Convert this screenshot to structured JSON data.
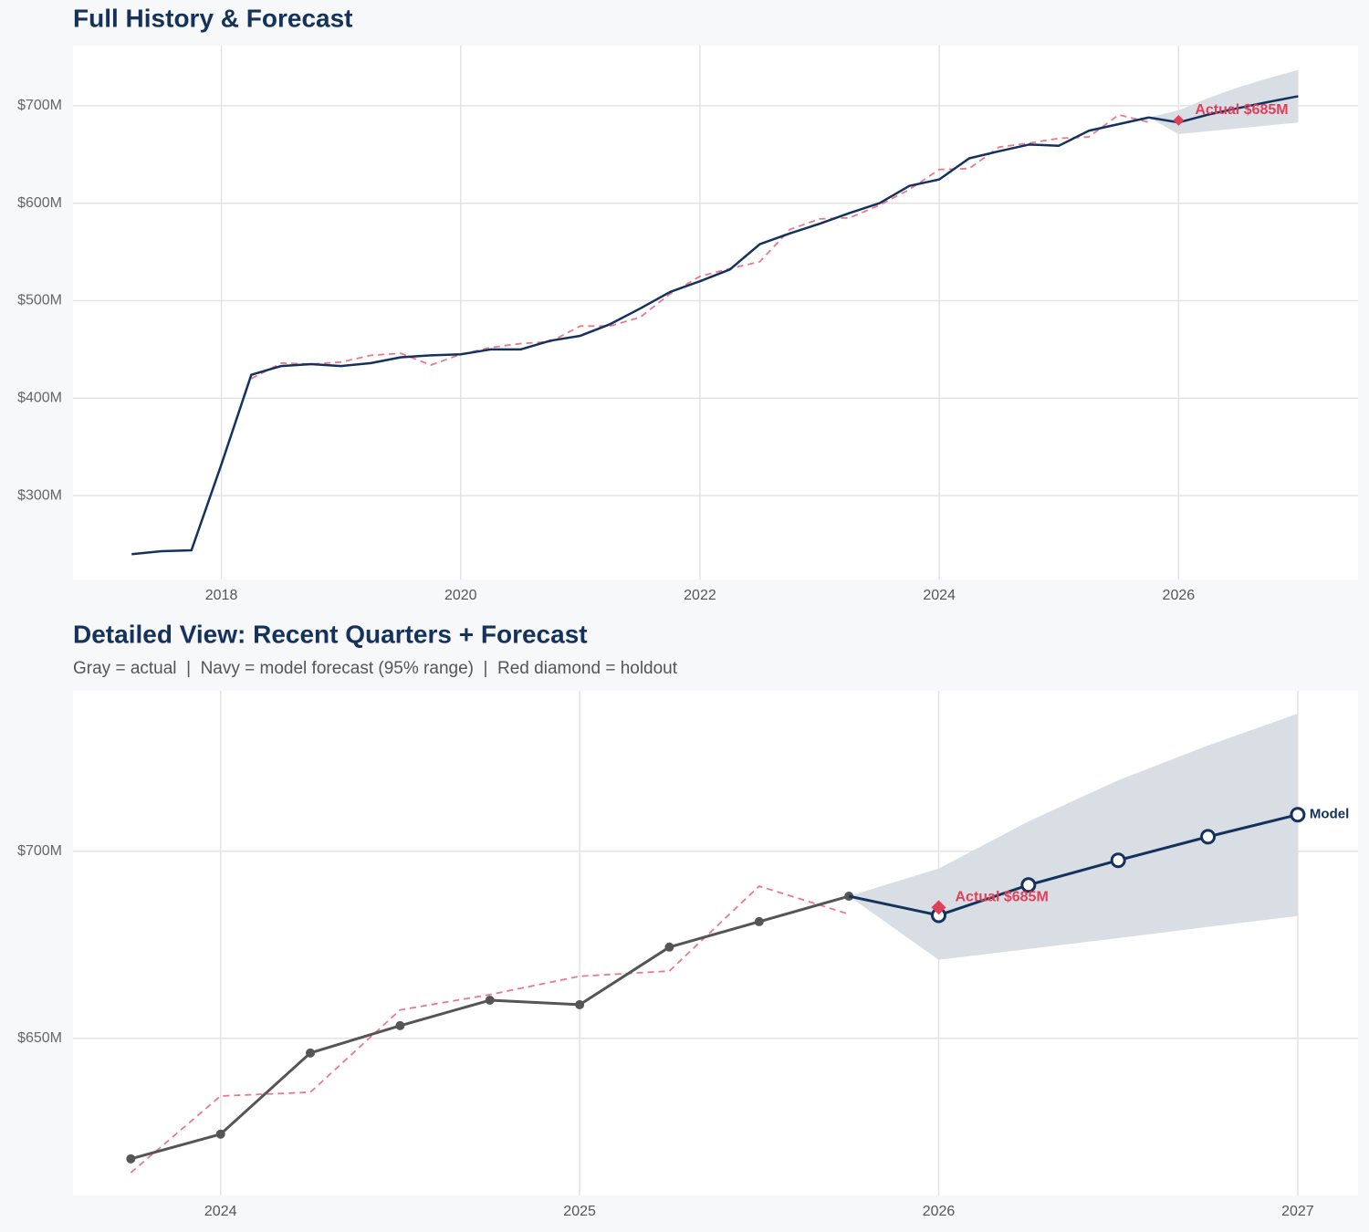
{
  "chart_data": [
    {
      "type": "line",
      "title": "Full History & Forecast",
      "xlim": [
        2016.76,
        2027.5
      ],
      "ylim": [
        214,
        761.7
      ],
      "xticks": [
        2018,
        2020,
        2022,
        2024,
        2026
      ],
      "yticks": [
        {
          "value": 300,
          "label": "$300M"
        },
        {
          "value": 400,
          "label": "$400M"
        },
        {
          "value": 500,
          "label": "$500M"
        },
        {
          "value": 600,
          "label": "$600M"
        },
        {
          "value": 700,
          "label": "$700M"
        }
      ],
      "grid": true,
      "band": {
        "color": "#d9dee5",
        "x": [
          2025.75,
          2026,
          2026.25,
          2026.5,
          2026.75,
          2027
        ],
        "upper": [
          688,
          695.4,
          708,
          719,
          728.3,
          736.8
        ],
        "lower": [
          688,
          671,
          673.9,
          676.8,
          679.8,
          682.7
        ]
      },
      "series": [
        {
          "color": "#e8798e",
          "dashed": true,
          "x": [
            2018.25,
            2018.5,
            2018.75,
            2019,
            2019.25,
            2019.5,
            2019.75,
            2020,
            2020.25,
            2020.5,
            2020.75,
            2021,
            2021.25,
            2021.5,
            2021.75,
            2022,
            2022.25,
            2022.5,
            2022.75,
            2023,
            2023.25,
            2023.5,
            2023.75,
            2024,
            2024.25,
            2024.5,
            2024.75,
            2025,
            2025.25,
            2025.5,
            2025.75
          ],
          "values": [
            420,
            436,
            435,
            437,
            444,
            446,
            434,
            445,
            452,
            456,
            458,
            474,
            474,
            483,
            507,
            525,
            533,
            540,
            573,
            584,
            585,
            598,
            614.1,
            634.6,
            635.6,
            657.6,
            661.7,
            666.6,
            668,
            690.7,
            683.2
          ]
        },
        {
          "color": "#14325c",
          "x": [
            2017.25,
            2017.5,
            2017.75,
            2018,
            2018.25,
            2018.5,
            2018.75,
            2019,
            2019.25,
            2019.5,
            2019.75,
            2020,
            2020.25,
            2020.5,
            2020.75,
            2021,
            2021.25,
            2021.5,
            2021.75,
            2022,
            2022.25,
            2022.5,
            2022.75,
            2023,
            2023.25,
            2023.5,
            2023.75,
            2024,
            2024.25,
            2024.5,
            2024.75,
            2025,
            2025.25,
            2025.5,
            2025.75
          ],
          "values": [
            240,
            243,
            244,
            332,
            424,
            433,
            435,
            433,
            436,
            442,
            444,
            445,
            450,
            450,
            459,
            464,
            476,
            492,
            509,
            520,
            532,
            558,
            569,
            579,
            590,
            600,
            617.8,
            624.4,
            646.1,
            653.4,
            660.2,
            659,
            674.4,
            681.2,
            688
          ]
        },
        {
          "color": "#14325c",
          "x": [
            2025.75,
            2026,
            2026.25,
            2026.5,
            2026.75,
            2027
          ],
          "values": [
            688,
            682.9,
            691,
            697.6,
            703.9,
            709.8
          ]
        }
      ],
      "annotations": [
        {
          "x": 2026,
          "y": 685,
          "text": "Actual $685M",
          "color": "#e0405a",
          "marker": "diamond",
          "size": 6
        }
      ]
    },
    {
      "type": "line",
      "title": "Detailed View: Recent Quarters + Forecast",
      "subtitle": "Gray = actual  |  Navy = model forecast (95% range)  |  Red diamond = holdout",
      "xlim": [
        2023.589,
        2027.168
      ],
      "ylim": [
        608,
        742.9
      ],
      "xticks": [
        2024,
        2025,
        2026,
        2027
      ],
      "yticks": [
        {
          "value": 650,
          "label": "$650M"
        },
        {
          "value": 700,
          "label": "$700M"
        }
      ],
      "grid": true,
      "band": {
        "color": "#d9dee5",
        "x": [
          2025.75,
          2026,
          2026.25,
          2026.5,
          2026.75,
          2027
        ],
        "upper": [
          688,
          695.4,
          708,
          719,
          728.3,
          736.8
        ],
        "lower": [
          688,
          671,
          673.9,
          676.8,
          679.8,
          682.7
        ]
      },
      "series": [
        {
          "color": "#e8798e",
          "dashed": true,
          "x": [
            2023.75,
            2024,
            2024.25,
            2024.5,
            2024.75,
            2025,
            2025.25,
            2025.5,
            2025.75
          ],
          "values": [
            614.1,
            634.6,
            635.6,
            657.6,
            661.7,
            666.6,
            668,
            690.7,
            683.2
          ]
        },
        {
          "color": "#555555",
          "markers": "filled",
          "x": [
            2023.75,
            2024,
            2024.25,
            2024.5,
            2024.75,
            2025,
            2025.25,
            2025.5,
            2025.75
          ],
          "values": [
            617.8,
            624.4,
            646.1,
            653.4,
            660.2,
            659,
            674.4,
            681.2,
            688
          ]
        },
        {
          "color": "#14325c",
          "markers": "open",
          "end_label": "Model",
          "x": [
            2025.75,
            2026,
            2026.25,
            2026.5,
            2026.75,
            2027
          ],
          "values": [
            688,
            682.9,
            691,
            697.6,
            703.9,
            709.8
          ]
        }
      ],
      "annotations": [
        {
          "x": 2026,
          "y": 685,
          "text": "Actual $685M",
          "color": "#e0405a",
          "marker": "diamond",
          "size": 8
        }
      ]
    }
  ]
}
